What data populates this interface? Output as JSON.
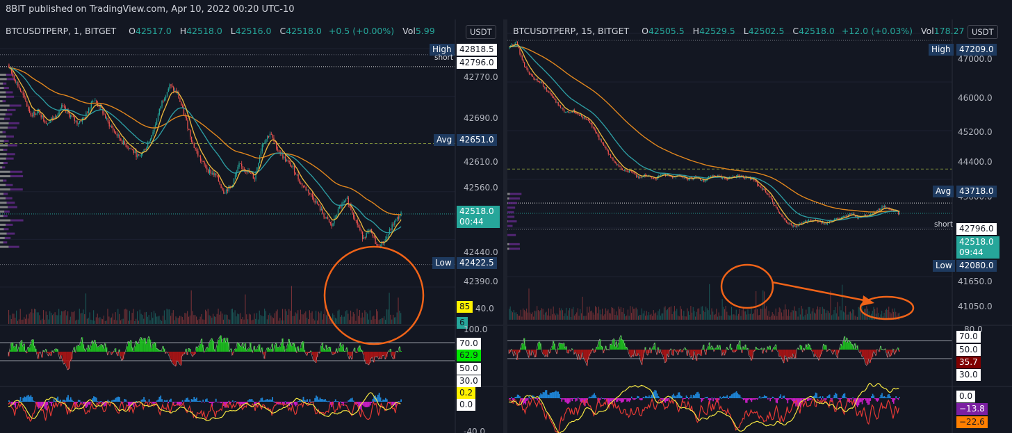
{
  "header": {
    "text": "8BIT published on TradingView.com, Apr 10, 2022 00:20 UTC-10"
  },
  "colors": {
    "up": "#26a69a",
    "down": "#ef5350",
    "ema_orange": "#e0861e",
    "ema_teal": "#2c9aa0",
    "ema_yellow": "#e8b33d",
    "annotation": "#f06318",
    "rsi_up": "#1ec81e",
    "rsi_down": "#b41414",
    "macd_hist_pos": "#2196f3",
    "macd_hist_neg": "#e91ee0",
    "profile_purple": "#6a2c91",
    "profile_gray": "#9e9e9e"
  },
  "left": {
    "legend": {
      "symbol": "BTCUSDTPERP, 1, BITGET",
      "o_label": "O",
      "o": "42517.0",
      "h_label": "H",
      "h": "42518.0",
      "l_label": "L",
      "l": "42516.0",
      "c_label": "C",
      "c": "42518.0",
      "chg": "+0.5 (+0.00%)",
      "vol_label": "Vol",
      "vol": "5.99"
    },
    "currency": "USDT",
    "axis_ticks": [
      "42770.0",
      "42690.0",
      "42610.0",
      "42560.0",
      "42440.0",
      "42390.0",
      "40.0"
    ],
    "tags": {
      "high_label": "High",
      "high": "42818.5",
      "short_label": "short",
      "short": "42796.0",
      "avg_label": "Avg",
      "avg": "42651.0",
      "price": "42518.0",
      "countdown": "00:44",
      "low_label": "Low",
      "low": "42422.5",
      "vol_a": "85",
      "vol_b": "6"
    },
    "rsi": {
      "top": "100.0",
      "v70": "70.0",
      "value": "62.9",
      "v50": "50.0",
      "v30": "30.0"
    },
    "macd": {
      "v1": "0.2",
      "v2": "0.0",
      "bottom": "-40.0"
    }
  },
  "right": {
    "legend": {
      "symbol": "BTCUSDTPERP, 15, BITGET",
      "o_label": "O",
      "o": "42505.5",
      "h_label": "H",
      "h": "42529.5",
      "l_label": "L",
      "l": "42502.5",
      "c_label": "C",
      "c": "42518.0",
      "chg": "+12.0 (+0.03%)",
      "vol_label": "Vol",
      "vol": "178.27"
    },
    "currency": "USDT",
    "axis_ticks": [
      "47000.0",
      "46000.0",
      "45200.0",
      "44400.0",
      "43600.0",
      "41650.0",
      "41050.0"
    ],
    "tags": {
      "high_label": "High",
      "high": "47209.0",
      "avg_label": "Avg",
      "avg": "43718.0",
      "short_label": "short",
      "short": "42796.0",
      "price": "42518.0",
      "countdown": "09:44",
      "low_label": "Low",
      "low": "42080.0"
    },
    "rsi": {
      "top": "80.0",
      "v70": "70.0",
      "v50": "50.0",
      "value": "35.7",
      "v30": "30.0"
    },
    "macd": {
      "v1": "0.0",
      "v2": "−13.8",
      "v3": "−22.6"
    }
  },
  "chart_data": [
    {
      "type": "candlestick",
      "title": "BTCUSDTPERP, 1, BITGET",
      "timeframe": "1",
      "ylim": [
        42380,
        42830
      ],
      "open": 42517.0,
      "high": 42518.0,
      "low": 42516.0,
      "close": 42518.0,
      "change": "+0.5 (+0.00%)",
      "volume": 5.99,
      "levels": {
        "high": 42818.5,
        "short": 42796.0,
        "avg": 42651.0,
        "low": 42422.5,
        "last": 42518.0
      },
      "price_path": [
        42800,
        42770,
        42740,
        42705,
        42712,
        42690,
        42700,
        42720,
        42705,
        42690,
        42700,
        42735,
        42720,
        42690,
        42670,
        42652,
        42640,
        42625,
        42645,
        42680,
        42730,
        42760,
        42745,
        42700,
        42650,
        42620,
        42600,
        42590,
        42560,
        42570,
        42610,
        42600,
        42585,
        42650,
        42670,
        42640,
        42620,
        42605,
        42575,
        42560,
        42540,
        42515,
        42495,
        42530,
        42545,
        42510,
        42475,
        42485,
        42455,
        42470,
        42500,
        42518
      ],
      "rsi": {
        "value": 62.9,
        "levels": [
          70,
          50,
          30
        ],
        "top": 100
      },
      "macd": {
        "values": [
          0.2,
          0.0
        ]
      }
    },
    {
      "type": "candlestick",
      "title": "BTCUSDTPERP, 15, BITGET",
      "timeframe": "15",
      "ylim": [
        40800,
        47400
      ],
      "open": 42505.5,
      "high": 42529.5,
      "low": 42502.5,
      "close": 42518.0,
      "change": "+12.0 (+0.03%)",
      "volume": 178.27,
      "levels": {
        "high": 47209.0,
        "avg": 43718.0,
        "short": 42796.0,
        "low": 42080.0,
        "last": 42518.0
      },
      "price_path": [
        47000,
        47150,
        46500,
        46200,
        46050,
        45800,
        45500,
        45250,
        45300,
        45150,
        45000,
        44600,
        44250,
        43900,
        43700,
        43650,
        43500,
        43550,
        43450,
        43600,
        43500,
        43550,
        43450,
        43500,
        43400,
        43550,
        43500,
        43450,
        43550,
        43500,
        43450,
        43200,
        43000,
        42600,
        42300,
        42150,
        42250,
        42350,
        42300,
        42250,
        42350,
        42400,
        42500,
        42400,
        42450,
        42550,
        42700,
        42600,
        42518
      ],
      "rsi": {
        "value": 35.7,
        "levels": [
          70,
          50,
          30
        ],
        "top": 80
      },
      "macd": {
        "values": [
          0.0,
          -13.8,
          -22.6
        ]
      }
    }
  ]
}
